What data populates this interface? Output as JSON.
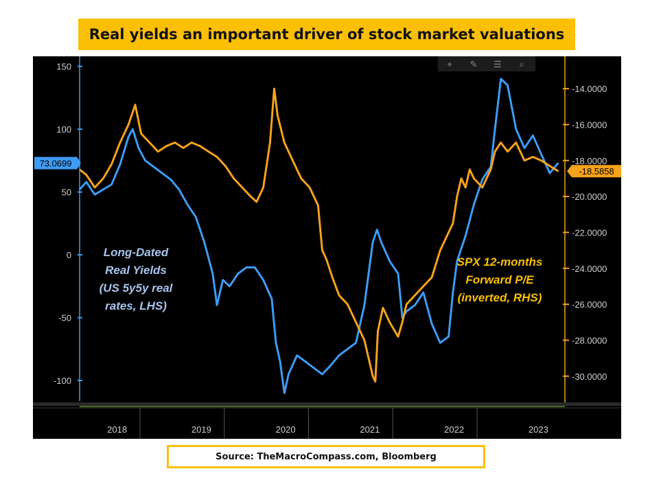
{
  "title": "Real yields an important driver of stock market valuations",
  "source": "Source: TheMacroCompass.com, Bloomberg",
  "colors": {
    "left_series": "#3d9cf5",
    "right_series": "#f7a21b",
    "title_bg": "#fbbf04",
    "panel_bg": "#000000"
  },
  "toolbar_icons": [
    "crosshair-icon",
    "pencil-icon",
    "list-icon",
    "zoom-icon"
  ],
  "chart_data": {
    "type": "line",
    "x_ticks": [
      "2018",
      "2019",
      "2020",
      "2021",
      "2022",
      "2023"
    ],
    "x_range": [
      2017.62,
      2023.38
    ],
    "y_left": {
      "range": [
        -118,
        158
      ],
      "ticks": [
        "150",
        "100",
        "50",
        "0",
        "-50",
        "-100"
      ],
      "tick_values": [
        150,
        100,
        50,
        0,
        -50,
        -100
      ]
    },
    "y_right": {
      "range": [
        -31.5,
        -12.2
      ],
      "ticks": [
        "-14.0000",
        "-16.0000",
        "-18.0000",
        "-20.0000",
        "-22.0000",
        "-24.0000",
        "-26.0000",
        "-28.0000",
        "-30.0000"
      ],
      "tick_values": [
        -14,
        -16,
        -18,
        -20,
        -22,
        -24,
        -26,
        -28,
        -30
      ]
    },
    "annotations": {
      "left_label": [
        "Long-Dated",
        "Real Yields",
        "(US 5y5y real",
        "rates, LHS)"
      ],
      "right_label": [
        "SPX 12-months",
        "Forward P/E",
        "(inverted, RHS)"
      ]
    },
    "series": [
      {
        "name": "Long-Dated Real Yields (US 5y5y real rates, LHS)",
        "axis": "left",
        "last_label": "73.0699",
        "points": [
          [
            2017.62,
            52
          ],
          [
            2017.7,
            58
          ],
          [
            2017.8,
            48
          ],
          [
            2017.9,
            52
          ],
          [
            2018.0,
            56
          ],
          [
            2018.1,
            72
          ],
          [
            2018.2,
            94
          ],
          [
            2018.25,
            100
          ],
          [
            2018.32,
            85
          ],
          [
            2018.4,
            75
          ],
          [
            2018.5,
            70
          ],
          [
            2018.6,
            65
          ],
          [
            2018.7,
            60
          ],
          [
            2018.8,
            52
          ],
          [
            2018.9,
            40
          ],
          [
            2019.0,
            30
          ],
          [
            2019.1,
            10
          ],
          [
            2019.2,
            -15
          ],
          [
            2019.25,
            -40
          ],
          [
            2019.32,
            -20
          ],
          [
            2019.4,
            -25
          ],
          [
            2019.5,
            -15
          ],
          [
            2019.6,
            -10
          ],
          [
            2019.7,
            -10
          ],
          [
            2019.8,
            -20
          ],
          [
            2019.9,
            -35
          ],
          [
            2019.95,
            -70
          ],
          [
            2020.0,
            -85
          ],
          [
            2020.05,
            -110
          ],
          [
            2020.1,
            -95
          ],
          [
            2020.2,
            -80
          ],
          [
            2020.3,
            -85
          ],
          [
            2020.4,
            -90
          ],
          [
            2020.5,
            -95
          ],
          [
            2020.6,
            -88
          ],
          [
            2020.7,
            -80
          ],
          [
            2020.8,
            -75
          ],
          [
            2020.9,
            -70
          ],
          [
            2021.0,
            -40
          ],
          [
            2021.05,
            -15
          ],
          [
            2021.1,
            10
          ],
          [
            2021.15,
            20
          ],
          [
            2021.2,
            10
          ],
          [
            2021.3,
            -5
          ],
          [
            2021.4,
            -15
          ],
          [
            2021.45,
            -50
          ],
          [
            2021.5,
            -45
          ],
          [
            2021.6,
            -40
          ],
          [
            2021.7,
            -30
          ],
          [
            2021.8,
            -55
          ],
          [
            2021.9,
            -70
          ],
          [
            2022.0,
            -65
          ],
          [
            2022.05,
            -30
          ],
          [
            2022.1,
            -5
          ],
          [
            2022.2,
            15
          ],
          [
            2022.3,
            40
          ],
          [
            2022.4,
            60
          ],
          [
            2022.5,
            70
          ],
          [
            2022.55,
            100
          ],
          [
            2022.62,
            140
          ],
          [
            2022.7,
            135
          ],
          [
            2022.8,
            100
          ],
          [
            2022.9,
            85
          ],
          [
            2023.0,
            95
          ],
          [
            2023.1,
            80
          ],
          [
            2023.2,
            65
          ],
          [
            2023.3,
            73
          ]
        ]
      },
      {
        "name": "SPX 12-months Forward P/E (inverted, RHS)",
        "axis": "right",
        "last_label": "-18.5858",
        "points": [
          [
            2017.62,
            -18.5
          ],
          [
            2017.7,
            -18.8
          ],
          [
            2017.8,
            -19.5
          ],
          [
            2017.9,
            -19.0
          ],
          [
            2018.0,
            -18.2
          ],
          [
            2018.1,
            -17.0
          ],
          [
            2018.2,
            -16.0
          ],
          [
            2018.28,
            -14.9
          ],
          [
            2018.35,
            -16.5
          ],
          [
            2018.45,
            -17.0
          ],
          [
            2018.55,
            -17.5
          ],
          [
            2018.65,
            -17.2
          ],
          [
            2018.75,
            -17.0
          ],
          [
            2018.85,
            -17.3
          ],
          [
            2018.95,
            -17.0
          ],
          [
            2019.05,
            -17.2
          ],
          [
            2019.15,
            -17.5
          ],
          [
            2019.25,
            -17.8
          ],
          [
            2019.35,
            -18.3
          ],
          [
            2019.45,
            -19.0
          ],
          [
            2019.55,
            -19.5
          ],
          [
            2019.65,
            -20.0
          ],
          [
            2019.72,
            -20.3
          ],
          [
            2019.8,
            -19.5
          ],
          [
            2019.88,
            -17.0
          ],
          [
            2019.93,
            -14.0
          ],
          [
            2019.97,
            -15.5
          ],
          [
            2020.05,
            -17.0
          ],
          [
            2020.15,
            -18.0
          ],
          [
            2020.25,
            -19.0
          ],
          [
            2020.35,
            -19.5
          ],
          [
            2020.45,
            -20.5
          ],
          [
            2020.5,
            -23.0
          ],
          [
            2020.55,
            -23.5
          ],
          [
            2020.62,
            -24.5
          ],
          [
            2020.7,
            -25.5
          ],
          [
            2020.8,
            -26.0
          ],
          [
            2020.9,
            -27.0
          ],
          [
            2021.0,
            -28.0
          ],
          [
            2021.05,
            -29.0
          ],
          [
            2021.1,
            -30.0
          ],
          [
            2021.13,
            -30.3
          ],
          [
            2021.16,
            -27.5
          ],
          [
            2021.22,
            -26.2
          ],
          [
            2021.3,
            -27.0
          ],
          [
            2021.4,
            -27.8
          ],
          [
            2021.45,
            -27.0
          ],
          [
            2021.5,
            -26.0
          ],
          [
            2021.6,
            -25.5
          ],
          [
            2021.7,
            -25.0
          ],
          [
            2021.8,
            -24.5
          ],
          [
            2021.9,
            -23.0
          ],
          [
            2022.0,
            -22.0
          ],
          [
            2022.05,
            -21.5
          ],
          [
            2022.1,
            -20.0
          ],
          [
            2022.15,
            -19.0
          ],
          [
            2022.2,
            -19.5
          ],
          [
            2022.25,
            -18.5
          ],
          [
            2022.3,
            -19.0
          ],
          [
            2022.4,
            -19.5
          ],
          [
            2022.5,
            -18.5
          ],
          [
            2022.55,
            -17.5
          ],
          [
            2022.62,
            -17.0
          ],
          [
            2022.7,
            -17.5
          ],
          [
            2022.8,
            -17.0
          ],
          [
            2022.9,
            -18.0
          ],
          [
            2023.0,
            -17.8
          ],
          [
            2023.1,
            -18.0
          ],
          [
            2023.2,
            -18.3
          ],
          [
            2023.3,
            -18.59
          ]
        ]
      }
    ]
  }
}
